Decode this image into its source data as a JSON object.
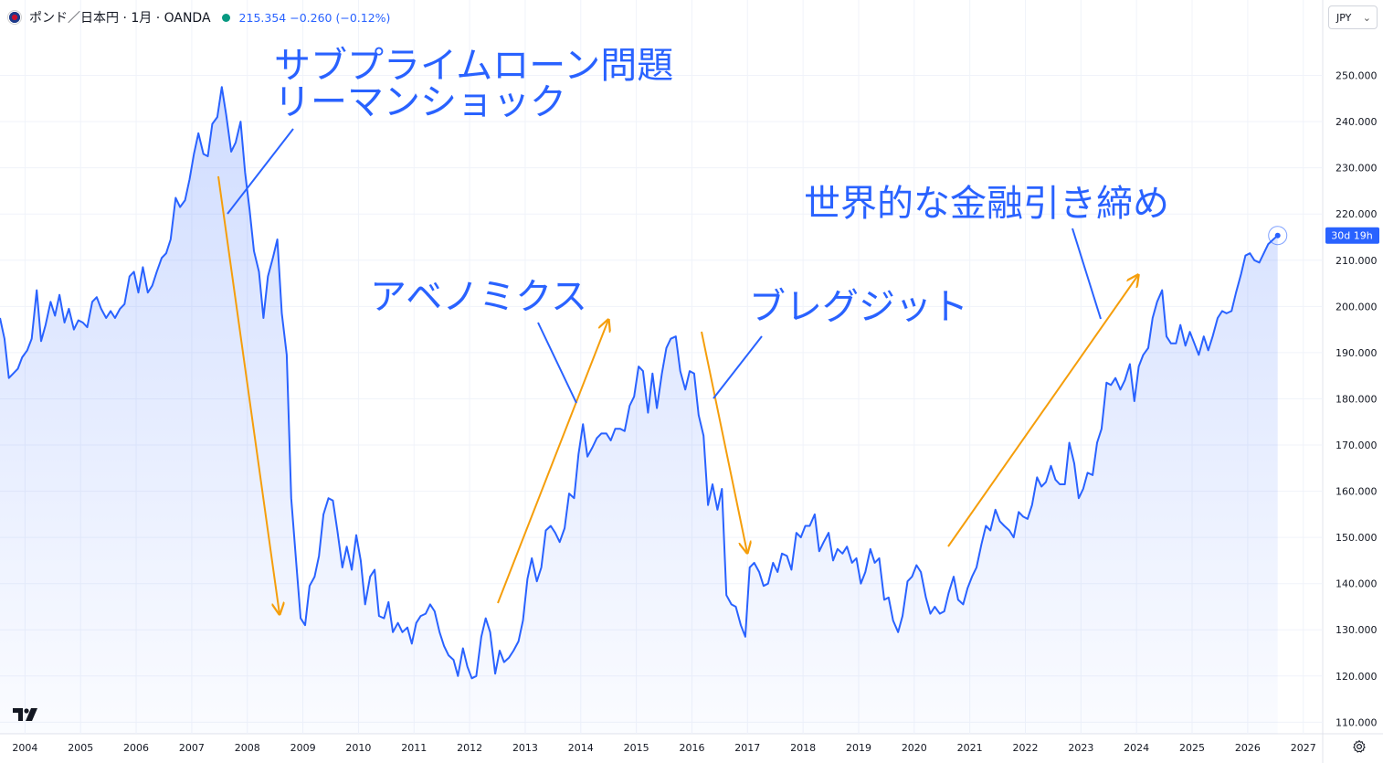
{
  "header": {
    "symbol": "ポンド／日本円 · 1月 · OANDA",
    "price": "215.354",
    "change": "−0.260 (−0.12%)",
    "flag_icon": "gbp-jpy-flag-icon",
    "status_color": "#089981"
  },
  "currency_selector": {
    "value": "JPY"
  },
  "countdown_badge": "30d 19h",
  "colors": {
    "line": "#2962ff",
    "arrow": "#f59e0b",
    "annotation": "#2962ff",
    "badge": "#2962ff"
  },
  "chart_data": {
    "type": "area",
    "title": "",
    "xlabel": "",
    "ylabel": "",
    "x_range": [
      2003.55,
      2027.35
    ],
    "ylim": [
      107.5,
      260.0
    ],
    "y_ticks": [
      "250.000",
      "240.000",
      "230.000",
      "220.000",
      "210.000",
      "200.000",
      "190.000",
      "180.000",
      "170.000",
      "160.000",
      "150.000",
      "140.000",
      "130.000",
      "120.000",
      "110.000"
    ],
    "x_ticks": [
      "2004",
      "2005",
      "2006",
      "2007",
      "2008",
      "2009",
      "2010",
      "2011",
      "2012",
      "2013",
      "2014",
      "2015",
      "2016",
      "2017",
      "2018",
      "2019",
      "2020",
      "2021",
      "2022",
      "2023",
      "2024",
      "2025",
      "2026",
      "2027"
    ],
    "grid": true,
    "series": [
      {
        "x": [
          2003.55,
          2003.63,
          2003.71,
          2003.79,
          2003.87,
          2003.95,
          2004.04,
          2004.12,
          2004.21,
          2004.29,
          2004.37,
          2004.46,
          2004.54,
          2004.62,
          2004.71,
          2004.79,
          2004.88,
          2004.96,
          2005.04,
          2005.12,
          2005.21,
          2005.29,
          2005.37,
          2005.46,
          2005.54,
          2005.62,
          2005.71,
          2005.79,
          2005.88,
          2005.96,
          2006.04,
          2006.12,
          2006.21,
          2006.29,
          2006.37,
          2006.46,
          2006.54,
          2006.62,
          2006.71,
          2006.79,
          2006.88,
          2006.96,
          2007.04,
          2007.12,
          2007.21,
          2007.29,
          2007.37,
          2007.46,
          2007.54,
          2007.62,
          2007.71,
          2007.79,
          2007.88,
          2007.96,
          2008.04,
          2008.12,
          2008.21,
          2008.29,
          2008.37,
          2008.46,
          2008.54,
          2008.62,
          2008.71,
          2008.79,
          2008.88,
          2008.96,
          2009.04,
          2009.12,
          2009.21,
          2009.29,
          2009.37,
          2009.46,
          2009.54,
          2009.62,
          2009.71,
          2009.79,
          2009.88,
          2009.96,
          2010.04,
          2010.12,
          2010.21,
          2010.29,
          2010.37,
          2010.46,
          2010.54,
          2010.62,
          2010.71,
          2010.79,
          2010.88,
          2010.96,
          2011.04,
          2011.12,
          2011.21,
          2011.29,
          2011.37,
          2011.46,
          2011.54,
          2011.62,
          2011.71,
          2011.79,
          2011.88,
          2011.96,
          2012.04,
          2012.12,
          2012.21,
          2012.29,
          2012.37,
          2012.46,
          2012.54,
          2012.62,
          2012.71,
          2012.79,
          2012.88,
          2012.96,
          2013.04,
          2013.12,
          2013.21,
          2013.29,
          2013.37,
          2013.46,
          2013.54,
          2013.62,
          2013.71,
          2013.79,
          2013.88,
          2013.96,
          2014.04,
          2014.12,
          2014.21,
          2014.29,
          2014.37,
          2014.46,
          2014.54,
          2014.62,
          2014.71,
          2014.79,
          2014.88,
          2014.96,
          2015.04,
          2015.12,
          2015.21,
          2015.29,
          2015.37,
          2015.46,
          2015.54,
          2015.62,
          2015.71,
          2015.79,
          2015.88,
          2015.96,
          2016.04,
          2016.12,
          2016.21,
          2016.29,
          2016.37,
          2016.46,
          2016.54,
          2016.62,
          2016.71,
          2016.79,
          2016.88,
          2016.96,
          2017.04,
          2017.12,
          2017.21,
          2017.29,
          2017.37,
          2017.46,
          2017.54,
          2017.62,
          2017.71,
          2017.79,
          2017.88,
          2017.96,
          2018.04,
          2018.12,
          2018.21,
          2018.29,
          2018.37,
          2018.46,
          2018.54,
          2018.62,
          2018.71,
          2018.79,
          2018.88,
          2018.96,
          2019.04,
          2019.12,
          2019.21,
          2019.29,
          2019.37,
          2019.46,
          2019.54,
          2019.62,
          2019.71,
          2019.79,
          2019.88,
          2019.96,
          2020.04,
          2020.12,
          2020.21,
          2020.29,
          2020.37,
          2020.46,
          2020.54,
          2020.62,
          2020.71,
          2020.79,
          2020.88,
          2020.96,
          2021.04,
          2021.12,
          2021.21,
          2021.29,
          2021.37,
          2021.46,
          2021.54,
          2021.62,
          2021.71,
          2021.79,
          2021.88,
          2021.96,
          2022.04,
          2022.12,
          2022.21,
          2022.29,
          2022.37,
          2022.46,
          2022.54,
          2022.62,
          2022.71,
          2022.79,
          2022.88,
          2022.96,
          2023.04,
          2023.12,
          2023.21,
          2023.29,
          2023.37,
          2023.46,
          2023.54,
          2023.62,
          2023.71,
          2023.79,
          2023.88,
          2023.96,
          2024.04,
          2024.12,
          2024.21,
          2024.29,
          2024.37,
          2024.46,
          2024.54,
          2024.62,
          2024.71,
          2024.79,
          2024.88,
          2024.96,
          2025.04,
          2025.12,
          2025.21,
          2025.29,
          2025.37,
          2025.46,
          2025.54,
          2025.62,
          2025.71,
          2025.79,
          2025.88,
          2025.96,
          2026.04,
          2026.12,
          2026.21,
          2026.29,
          2026.37,
          2026.46,
          2026.54
        ],
        "values": [
          197.5,
          193.0,
          184.5,
          185.5,
          186.5,
          189.0,
          190.5,
          193.0,
          203.5,
          192.5,
          196.0,
          201.0,
          198.0,
          202.5,
          196.5,
          199.5,
          195.0,
          197.0,
          196.5,
          195.5,
          201.0,
          202.0,
          199.5,
          197.5,
          199.0,
          197.5,
          199.5,
          200.5,
          206.5,
          207.5,
          203.0,
          208.5,
          203.0,
          204.5,
          207.5,
          210.5,
          211.5,
          214.5,
          223.5,
          221.5,
          223.0,
          227.5,
          233.0,
          237.5,
          233.0,
          232.5,
          239.5,
          241.0,
          247.5,
          241.5,
          233.5,
          235.5,
          240.0,
          229.0,
          221.0,
          212.0,
          207.5,
          197.5,
          206.5,
          210.5,
          214.5,
          198.5,
          189.5,
          158.5,
          144.5,
          132.5,
          131.0,
          139.5,
          141.5,
          146.0,
          155.0,
          158.5,
          158.0,
          151.5,
          143.5,
          148.0,
          143.0,
          150.5,
          145.0,
          135.5,
          141.5,
          143.0,
          133.0,
          132.5,
          136.0,
          129.5,
          131.5,
          129.5,
          130.5,
          127.0,
          131.5,
          133.0,
          133.5,
          135.5,
          134.0,
          129.5,
          126.5,
          124.5,
          123.5,
          120.0,
          126.0,
          122.0,
          119.5,
          120.0,
          128.5,
          132.5,
          129.5,
          120.5,
          125.5,
          123.0,
          124.0,
          125.5,
          127.5,
          132.0,
          141.0,
          145.5,
          140.5,
          143.5,
          151.5,
          152.5,
          151.0,
          149.0,
          152.0,
          159.5,
          158.5,
          168.0,
          174.5,
          167.5,
          169.5,
          171.5,
          172.5,
          172.5,
          171.0,
          173.5,
          173.5,
          173.0,
          178.5,
          180.5,
          187.0,
          186.0,
          177.0,
          185.5,
          178.0,
          185.5,
          191.0,
          193.0,
          193.5,
          186.0,
          182.0,
          186.0,
          185.5,
          176.5,
          172.0,
          157.0,
          161.5,
          156.0,
          160.5,
          137.5,
          135.5,
          135.0,
          131.0,
          128.5,
          143.5,
          144.5,
          142.5,
          139.5,
          140.0,
          144.5,
          142.5,
          146.5,
          146.0,
          143.0,
          151.0,
          150.0,
          152.5,
          152.5,
          155.0,
          147.0,
          149.0,
          151.0,
          145.0,
          147.5,
          146.5,
          148.0,
          144.5,
          145.5,
          140.0,
          142.5,
          147.5,
          144.5,
          145.5,
          136.5,
          137.0,
          132.0,
          129.5,
          133.0,
          140.5,
          141.5,
          144.0,
          142.5,
          137.0,
          133.5,
          135.0,
          133.5,
          134.0,
          138.0,
          141.5,
          136.5,
          135.5,
          139.0,
          141.5,
          143.5,
          148.5,
          152.5,
          151.5,
          156.0,
          153.5,
          152.5,
          151.5,
          150.0,
          155.5,
          154.5,
          154.0,
          157.0,
          163.0,
          161.0,
          162.0,
          165.5,
          162.5,
          161.5,
          161.5,
          170.5,
          166.0,
          158.5,
          160.5,
          164.0,
          163.5,
          170.5,
          173.5,
          183.5,
          183.0,
          184.5,
          182.0,
          184.0,
          187.5,
          179.5,
          187.0,
          189.5,
          191.0,
          197.5,
          201.0,
          203.5,
          193.5,
          192.0,
          192.0,
          196.0,
          191.5,
          194.5,
          192.0,
          189.5,
          193.5,
          190.5,
          193.5,
          197.5,
          199.0,
          198.5,
          199.0,
          203.0,
          207.0,
          211.0,
          211.5,
          210.0,
          209.5,
          211.5,
          213.5,
          214.5,
          215.354
        ]
      }
    ]
  },
  "annotations": {
    "subprime_line1": "サブプライムローン問題",
    "subprime_line2": "リーマンショック",
    "abenomics": "アベノミクス",
    "brexit": "ブレグジット",
    "tightening": "世界的な金融引き締め"
  },
  "icons": {
    "logo": "tradingview-logo-icon",
    "settings": "gear-icon",
    "dropdown": "chevron-down-icon"
  }
}
